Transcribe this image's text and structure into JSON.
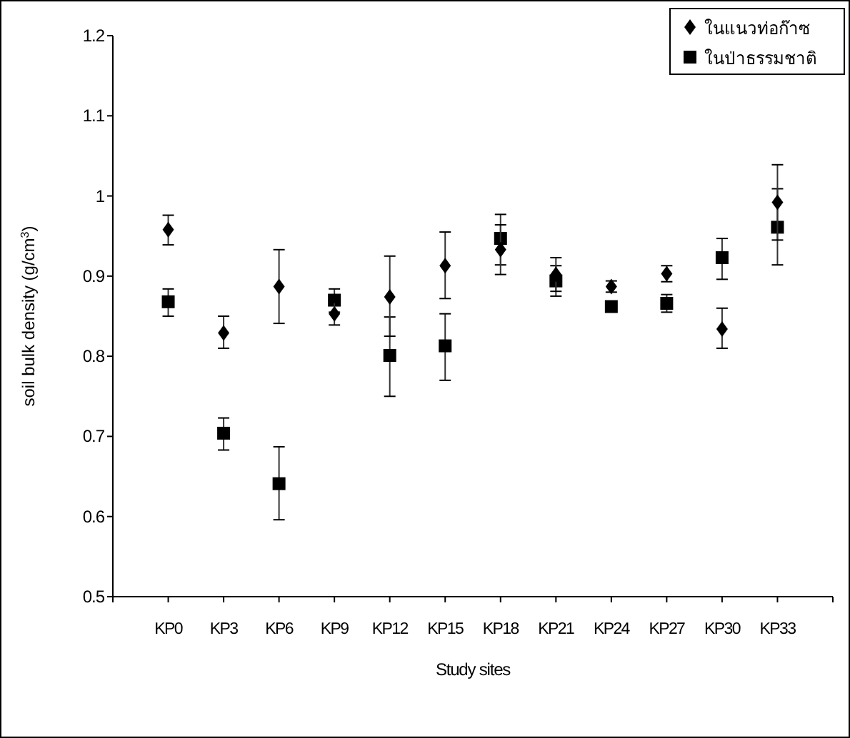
{
  "chart_data": {
    "type": "scatter",
    "xlabel": "Study sites",
    "ylabel": "soil bulk density    (g/cm$^{3}$)",
    "categories": [
      "KP0",
      "KP3",
      "KP6",
      "KP9",
      "KP12",
      "KP15",
      "KP18",
      "KP21",
      "KP24",
      "KP27",
      "KP30",
      "KP33"
    ],
    "series": [
      {
        "name": "ในแนวท่อก๊าซ",
        "color": "#000000",
        "marker": "diamond",
        "values": [
          0.958,
          0.829,
          0.887,
          0.853,
          0.874,
          0.913,
          0.933,
          0.902,
          0.887,
          0.903,
          0.834,
          0.992
        ],
        "errors": [
          [
            0.939,
            0.976
          ],
          [
            0.81,
            0.85
          ],
          [
            0.841,
            0.933
          ],
          [
            0.839,
            0.867
          ],
          [
            0.825,
            0.925
          ],
          [
            0.872,
            0.955
          ],
          [
            0.902,
            0.964
          ],
          [
            0.881,
            0.923
          ],
          [
            0.88,
            0.894
          ],
          [
            0.893,
            0.913
          ],
          [
            0.81,
            0.86
          ],
          [
            0.945,
            1.039
          ]
        ]
      },
      {
        "name": "ในป่าธรรมชาติ",
        "color": "#000000",
        "marker": "square",
        "values": [
          0.868,
          0.704,
          0.641,
          0.87,
          0.801,
          0.813,
          0.947,
          0.894,
          0.862,
          0.866,
          0.923,
          0.961
        ],
        "errors": [
          [
            0.85,
            0.884
          ],
          [
            0.683,
            0.723
          ],
          [
            0.596,
            0.687
          ],
          [
            0.855,
            0.884
          ],
          [
            0.75,
            0.849
          ],
          [
            0.77,
            0.853
          ],
          [
            0.914,
            0.977
          ],
          [
            0.875,
            0.913
          ],
          [
            0.857,
            0.867
          ],
          [
            0.855,
            0.877
          ],
          [
            0.896,
            0.947
          ],
          [
            0.914,
            1.009
          ]
        ]
      }
    ],
    "ylim": [
      0.5,
      1.2
    ],
    "yticks": [
      0.5,
      0.6,
      0.7,
      0.8,
      0.9,
      1,
      1.1,
      1.2
    ],
    "grid": false,
    "legend": "top right"
  }
}
